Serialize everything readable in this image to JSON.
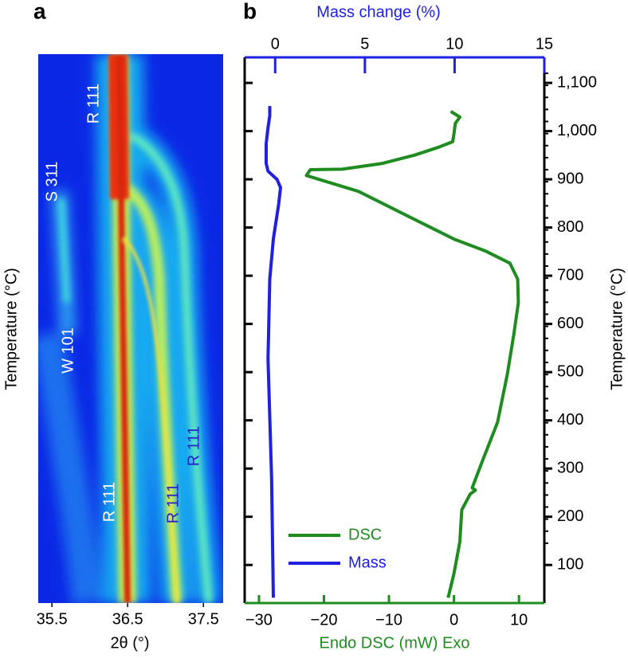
{
  "chart_data": [
    {
      "type": "heatmap",
      "panel": "a",
      "xlabel": "2θ (°)",
      "ylabel": "Temperature (°C)",
      "xlim": [
        35.32,
        37.76
      ],
      "xticks": [
        35.5,
        36.5,
        37.5
      ],
      "annotations": [
        {
          "text": "R 111",
          "color": "#ffffff"
        },
        {
          "text": "S 311",
          "color": "#ffffff"
        },
        {
          "text": "W 101",
          "color": "#ffffff"
        },
        {
          "text": "R 111",
          "color": "#ffffff"
        },
        {
          "text": "R 111",
          "color": "#2424c8"
        },
        {
          "text": "R 111",
          "color": "#2424c8"
        }
      ]
    },
    {
      "type": "line",
      "panel": "b",
      "xlabel": "Endo DSC (mW) Exo",
      "x2label": "Mass change (%)",
      "ylabel": "Temperature (°C)",
      "xlim": [
        -32.2,
        13.9
      ],
      "xticks": [
        {
          "value": -30,
          "label": "−30"
        },
        {
          "value": -20,
          "label": "−20"
        },
        {
          "value": -10,
          "label": "−10"
        },
        0,
        10
      ],
      "x2lim": [
        -1.7,
        15
      ],
      "x2ticks": [
        0,
        5,
        10,
        15
      ],
      "ylim": [
        21,
        1153
      ],
      "yticks": [
        100,
        200,
        300,
        400,
        500,
        600,
        700,
        800,
        900,
        {
          "value": 1000,
          "label": "1,000"
        },
        {
          "value": 1100,
          "label": "1,100"
        }
      ],
      "legend": "lower left",
      "grid": false,
      "series": [
        {
          "name": "DSC",
          "color": "#1e8c1e",
          "y": [
            32,
            82,
            148,
            214,
            247,
            255,
            260,
            313,
            396,
            495,
            578,
            644,
            693,
            726,
            751,
            776,
            809,
            842,
            875,
            895,
            908,
            920,
            921,
            933,
            950,
            966,
            978,
            994,
            1016,
            1029,
            1041
          ],
          "values": [
            -0.9,
            0,
            0.9,
            1.2,
            2.5,
            3.3,
            2.8,
            4.3,
            6.7,
            8.2,
            9.2,
            9.9,
            9.8,
            8.6,
            4.9,
            0,
            -4.9,
            -9.8,
            -14.7,
            -19.6,
            -22.7,
            -22.1,
            -17.2,
            -11.0,
            -6.1,
            -2.5,
            -0.2,
            0,
            0.2,
            0.9,
            -0.5
          ]
        },
        {
          "name": "Mass",
          "color": "#2020e0",
          "axis": "x2",
          "y": [
            32,
            280,
            528,
            693,
            776,
            850,
            883,
            900,
            917,
            933,
            974,
            1007,
            1032,
            1052
          ],
          "values": [
            -0.1,
            -0.2,
            -0.4,
            -0.3,
            -0.1,
            0.2,
            0.3,
            0.1,
            -0.4,
            -0.5,
            -0.5,
            -0.4,
            -0.3,
            -0.3
          ]
        }
      ]
    }
  ]
}
